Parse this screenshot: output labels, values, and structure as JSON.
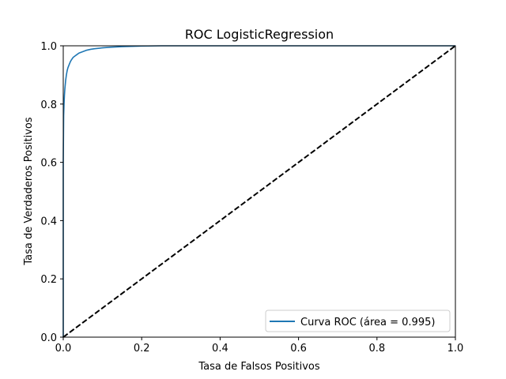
{
  "chart_data": {
    "type": "line",
    "title": "ROC LogisticRegression",
    "xlabel": "Tasa de Falsos Positivos",
    "ylabel": "Tasa de Verdaderos Positivos",
    "xlim": [
      0.0,
      1.0
    ],
    "ylim": [
      0.0,
      1.0
    ],
    "grid": false,
    "legend_position": "lower-right",
    "x_ticks": [
      "0.0",
      "0.2",
      "0.4",
      "0.6",
      "0.8",
      "1.0"
    ],
    "y_ticks": [
      "0.0",
      "0.2",
      "0.4",
      "0.6",
      "0.8",
      "1.0"
    ],
    "series": [
      {
        "name": "Curva ROC (área = 0.995)",
        "color": "#1f77b4",
        "style": "solid",
        "x": [
          0.0,
          0.0,
          0.001,
          0.002,
          0.003,
          0.004,
          0.005,
          0.006,
          0.008,
          0.01,
          0.012,
          0.015,
          0.018,
          0.02,
          0.025,
          0.03,
          0.035,
          0.04,
          0.05,
          0.06,
          0.07,
          0.08,
          0.1,
          0.12,
          0.15,
          0.2,
          0.25,
          0.3,
          0.5,
          0.8,
          1.0
        ],
        "y": [
          0.0,
          0.6,
          0.76,
          0.8,
          0.83,
          0.85,
          0.865,
          0.88,
          0.9,
          0.915,
          0.925,
          0.935,
          0.945,
          0.95,
          0.96,
          0.965,
          0.97,
          0.975,
          0.98,
          0.985,
          0.988,
          0.99,
          0.993,
          0.995,
          0.997,
          0.999,
          1.0,
          1.0,
          1.0,
          1.0,
          1.0
        ]
      },
      {
        "name": "",
        "color": "#000000",
        "style": "dashed",
        "x": [
          0.0,
          1.0
        ],
        "y": [
          0.0,
          1.0
        ]
      }
    ]
  }
}
